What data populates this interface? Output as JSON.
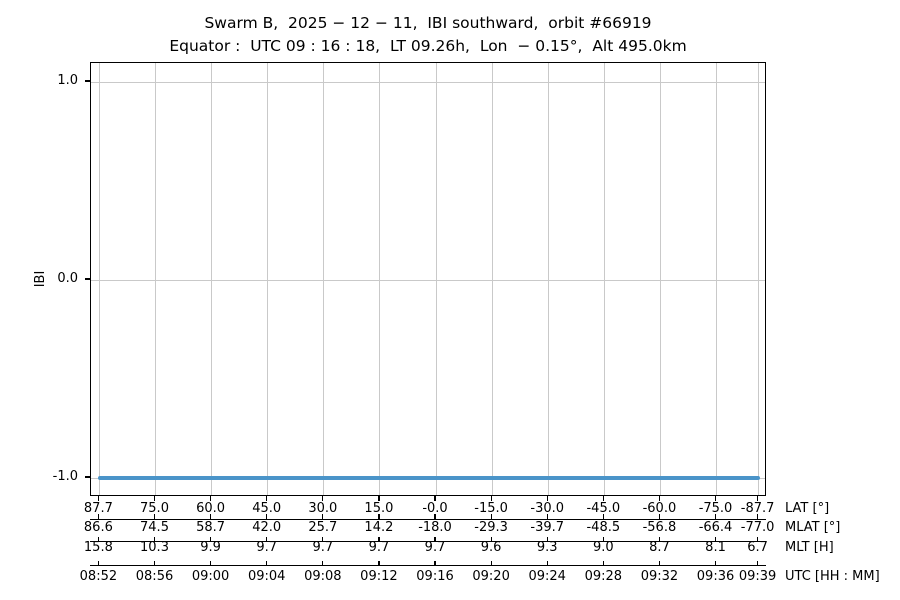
{
  "title": {
    "line1": "Swarm B,  2025 − 12 − 11,  IBI southward,  orbit #66919",
    "line2": "Equator :  UTC 09 : 16 : 18,  LT 09.26h,  Lon  − 0.15°,  Alt 495.0km"
  },
  "chart_data": {
    "type": "line",
    "title": "Swarm B, 2025-12-11, IBI southward, orbit #66919",
    "subtitle": "Equator: UTC 09:16:18, LT 09.26h, Lon -0.15°, Alt 495.0km",
    "ylabel": "IBI",
    "ylim": [
      -1.09,
      1.1
    ],
    "grid": true,
    "legend": "none",
    "yticks": [
      {
        "value": 1.0,
        "label": "1.0"
      },
      {
        "value": 0.0,
        "label": "0.0"
      },
      {
        "value": -1.0,
        "label": "-1.0"
      }
    ],
    "series": [
      {
        "name": "IBI",
        "color": "#4a94c9",
        "value": -1.0,
        "description": "constant line at IBI = -1.0 spanning 08:52 to 09:39 UTC"
      }
    ],
    "x_axes": [
      {
        "label": "LAT [°]",
        "ticks": [
          "87.7",
          "75.0",
          "60.0",
          "45.0",
          "30.0",
          "15.0",
          "-0.0",
          "-15.0",
          "-30.0",
          "-45.0",
          "-60.0",
          "-75.0",
          "-87.7"
        ]
      },
      {
        "label": "MLAT [°]",
        "ticks": [
          "86.6",
          "74.5",
          "58.7",
          "42.0",
          "25.7",
          "14.2",
          "-18.0",
          "-29.3",
          "-39.7",
          "-48.5",
          "-56.8",
          "-66.4",
          "-77.0"
        ]
      },
      {
        "label": "MLT [H]",
        "ticks": [
          "15.8",
          "10.3",
          "9.9",
          "9.7",
          "9.7",
          "9.7",
          "9.7",
          "9.6",
          "9.3",
          "9.0",
          "8.7",
          "8.1",
          "6.7"
        ]
      },
      {
        "label": "UTC [HH : MM]",
        "ticks": [
          "08:52",
          "08:56",
          "09:00",
          "09:04",
          "09:08",
          "09:12",
          "09:16",
          "09:20",
          "09:24",
          "09:28",
          "09:32",
          "09:36",
          "09:39"
        ]
      }
    ]
  }
}
